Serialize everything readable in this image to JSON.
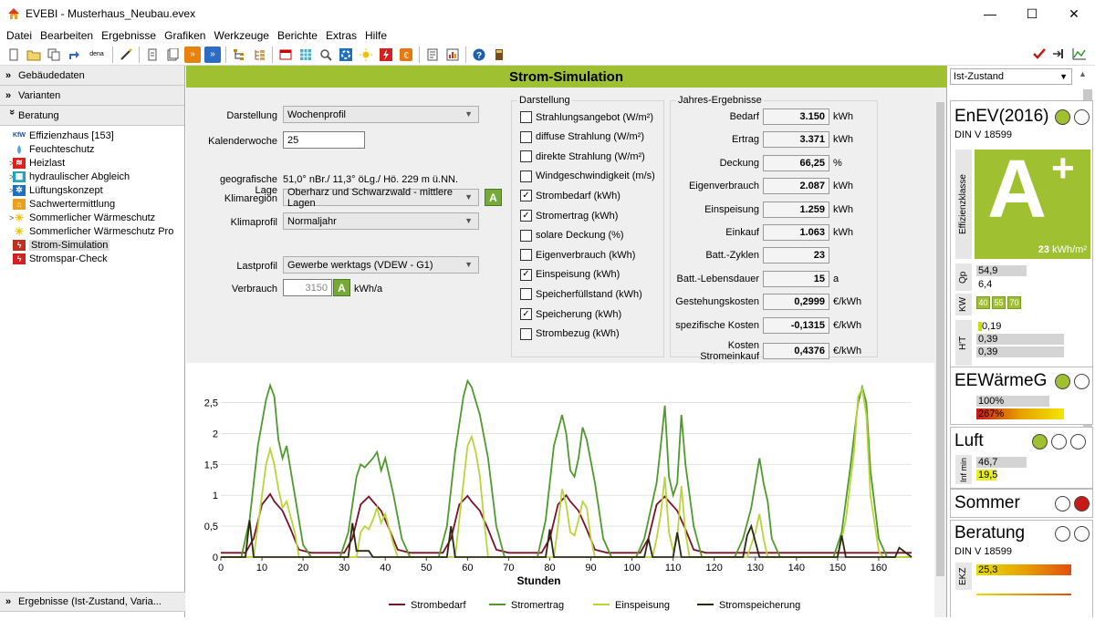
{
  "window": {
    "title": "EVEBI - Musterhaus_Neubau.evex",
    "minimize": "—",
    "maximize": "☐",
    "close": "✕"
  },
  "menu": [
    "Datei",
    "Bearbeiten",
    "Ergebnisse",
    "Grafiken",
    "Werkzeuge",
    "Berichte",
    "Extras",
    "Hilfe"
  ],
  "left": {
    "sections": {
      "gebaeudedaten": "Gebäudedaten",
      "varianten": "Varianten",
      "beratung": "Beratung",
      "ergebnisse": "Ergebnisse (Ist-Zustand, Varia..."
    },
    "tree": [
      {
        "label": "Effizienzhaus [153]",
        "icon": "kfw-icon",
        "arrow": ""
      },
      {
        "label": "Feuchteschutz",
        "icon": "drop-icon",
        "arrow": ""
      },
      {
        "label": "Heizlast",
        "icon": "heizlast-icon",
        "arrow": ">"
      },
      {
        "label": "hydraulischer Abgleich",
        "icon": "hydraulik-icon",
        "arrow": ">"
      },
      {
        "label": "Lüftungskonzept",
        "icon": "fan-icon",
        "arrow": ">"
      },
      {
        "label": "Sachwertermittlung",
        "icon": "house-icon",
        "arrow": ""
      },
      {
        "label": "Sommerlicher Wärmeschutz",
        "icon": "sun-icon",
        "arrow": ">"
      },
      {
        "label": "Sommerlicher Wärmeschutz Pro",
        "icon": "sun-icon",
        "arrow": ""
      },
      {
        "label": "Strom-Simulation",
        "icon": "strom-icon",
        "arrow": ""
      },
      {
        "label": "Stromspar-Check",
        "icon": "bolt-icon",
        "arrow": ""
      }
    ]
  },
  "main": {
    "header": "Strom-Simulation",
    "darstellung_label": "Darstellung",
    "darstellung_value": "Wochenprofil",
    "kw_label": "Kalenderwoche",
    "kw_value": "25",
    "geo_label": "geografische Lage",
    "geo_value": "51,0° nBr./ 11,3° öLg./ Hö. 229 m ü.NN.",
    "klimaregion_label": "Klimaregion",
    "klimaregion_value": "Oberharz und Schwarzwald - mittlere Lagen",
    "klimaprofil_label": "Klimaprofil",
    "klimaprofil_value": "Normaljahr",
    "lastprofil_label": "Lastprofil",
    "lastprofil_value": "Gewerbe werktags (VDEW - G1)",
    "verbrauch_label": "Verbrauch",
    "verbrauch_value": "3150",
    "verbrauch_unit": "kWh/a",
    "a_button": "A",
    "darstellung_group": "Darstellung",
    "checkboxes": [
      {
        "label": "Strahlungsangebot (W/m²)",
        "checked": false
      },
      {
        "label": "diffuse Strahlung (W/m²)",
        "checked": false
      },
      {
        "label": "direkte Strahlung (W/m²)",
        "checked": false
      },
      {
        "label": "Windgeschwindigkeit (m/s)",
        "checked": false
      },
      {
        "label": "Strombedarf (kWh)",
        "checked": true
      },
      {
        "label": "Stromertrag (kWh)",
        "checked": true
      },
      {
        "label": "solare Deckung (%)",
        "checked": false
      },
      {
        "label": "Eigenverbrauch (kWh)",
        "checked": false
      },
      {
        "label": "Einspeisung (kWh)",
        "checked": true
      },
      {
        "label": "Speicherfüllstand (kWh)",
        "checked": false
      },
      {
        "label": "Speicherung (kWh)",
        "checked": true
      },
      {
        "label": "Strombezug (kWh)",
        "checked": false
      }
    ],
    "results_group": "Jahres-Ergebnisse",
    "results": [
      {
        "label": "Bedarf",
        "value": "3.150",
        "unit": "kWh"
      },
      {
        "label": "Ertrag",
        "value": "3.371",
        "unit": "kWh"
      },
      {
        "label": "Deckung",
        "value": "66,25",
        "unit": "%"
      },
      {
        "label": "Eigenverbrauch",
        "value": "2.087",
        "unit": "kWh"
      },
      {
        "label": "Einspeisung",
        "value": "1.259",
        "unit": "kWh"
      },
      {
        "label": "Einkauf",
        "value": "1.063",
        "unit": "kWh"
      },
      {
        "label": "Batt.-Zyklen",
        "value": "23",
        "unit": ""
      },
      {
        "label": "Batt.-Lebensdauer",
        "value": "15",
        "unit": "a"
      },
      {
        "label": "Gestehungskosten",
        "value": "0,2999",
        "unit": "€/kWh"
      },
      {
        "label": "spezifische Kosten",
        "value": "-0,1315",
        "unit": "€/kWh"
      },
      {
        "label": "Kosten Stromeinkauf",
        "value": "0,4376",
        "unit": "€/kWh"
      }
    ]
  },
  "chart_data": {
    "type": "line",
    "xlabel": "Stunden",
    "ylabel": "",
    "xlim": [
      0,
      168
    ],
    "ylim": [
      0,
      2.7
    ],
    "xticks": [
      0,
      10,
      20,
      30,
      40,
      50,
      60,
      70,
      80,
      90,
      100,
      110,
      120,
      130,
      140,
      150,
      160
    ],
    "yticks": [
      {
        "v": 0,
        "t": "0"
      },
      {
        "v": 0.5,
        "t": "0,5"
      },
      {
        "v": 1,
        "t": "1"
      },
      {
        "v": 1.5,
        "t": "1,5"
      },
      {
        "v": 2,
        "t": "2"
      },
      {
        "v": 2.5,
        "t": "2,5"
      }
    ],
    "grid": true,
    "legend": "bottom",
    "series": [
      {
        "name": "Strombedarf",
        "color": "#7a1228",
        "points": [
          [
            0,
            0.07
          ],
          [
            6,
            0.07
          ],
          [
            8,
            0.3
          ],
          [
            10,
            0.85
          ],
          [
            12,
            1.02
          ],
          [
            13,
            0.9
          ],
          [
            15,
            0.75
          ],
          [
            17,
            0.45
          ],
          [
            19,
            0.12
          ],
          [
            22,
            0.07
          ],
          [
            30,
            0.07
          ],
          [
            32,
            0.3
          ],
          [
            34,
            0.85
          ],
          [
            36,
            0.98
          ],
          [
            37,
            0.9
          ],
          [
            39,
            0.75
          ],
          [
            41,
            0.45
          ],
          [
            43,
            0.12
          ],
          [
            46,
            0.07
          ],
          [
            54,
            0.07
          ],
          [
            56,
            0.3
          ],
          [
            58,
            0.85
          ],
          [
            60,
            0.99
          ],
          [
            61,
            0.9
          ],
          [
            63,
            0.75
          ],
          [
            65,
            0.45
          ],
          [
            67,
            0.12
          ],
          [
            70,
            0.07
          ],
          [
            78,
            0.07
          ],
          [
            80,
            0.3
          ],
          [
            82,
            0.85
          ],
          [
            84,
            1.0
          ],
          [
            85,
            0.9
          ],
          [
            87,
            0.75
          ],
          [
            89,
            0.45
          ],
          [
            91,
            0.12
          ],
          [
            94,
            0.07
          ],
          [
            102,
            0.07
          ],
          [
            104,
            0.3
          ],
          [
            106,
            0.85
          ],
          [
            108,
            0.98
          ],
          [
            109,
            0.9
          ],
          [
            111,
            0.75
          ],
          [
            113,
            0.45
          ],
          [
            115,
            0.12
          ],
          [
            118,
            0.07
          ],
          [
            130,
            0.07
          ],
          [
            134,
            0.07
          ],
          [
            152,
            0.07
          ],
          [
            160,
            0.07
          ],
          [
            168,
            0.07
          ]
        ]
      },
      {
        "name": "Stromertrag",
        "color": "#4f9a2c",
        "points": [
          [
            0,
            0
          ],
          [
            5,
            0
          ],
          [
            7,
            0.6
          ],
          [
            9,
            1.8
          ],
          [
            11,
            2.55
          ],
          [
            12,
            2.78
          ],
          [
            13,
            2.6
          ],
          [
            14,
            1.9
          ],
          [
            15,
            1.6
          ],
          [
            16,
            1.8
          ],
          [
            18,
            1.0
          ],
          [
            20,
            0.2
          ],
          [
            22,
            0
          ],
          [
            29,
            0
          ],
          [
            31,
            0.4
          ],
          [
            33,
            1.3
          ],
          [
            34,
            1.5
          ],
          [
            35,
            1.45
          ],
          [
            37,
            1.6
          ],
          [
            38,
            1.7
          ],
          [
            39,
            1.4
          ],
          [
            40,
            1.6
          ],
          [
            42,
            1.0
          ],
          [
            44,
            0.3
          ],
          [
            46,
            0
          ],
          [
            53,
            0
          ],
          [
            55,
            0.5
          ],
          [
            57,
            1.7
          ],
          [
            59,
            2.6
          ],
          [
            60,
            2.85
          ],
          [
            61,
            2.75
          ],
          [
            63,
            2.3
          ],
          [
            65,
            1.6
          ],
          [
            67,
            0.5
          ],
          [
            69,
            0
          ],
          [
            77,
            0
          ],
          [
            79,
            0.6
          ],
          [
            81,
            1.8
          ],
          [
            83,
            2.3
          ],
          [
            84,
            2.0
          ],
          [
            85,
            1.4
          ],
          [
            86,
            1.3
          ],
          [
            87,
            1.6
          ],
          [
            88,
            2.1
          ],
          [
            89,
            1.9
          ],
          [
            91,
            1.2
          ],
          [
            93,
            0.3
          ],
          [
            95,
            0
          ],
          [
            101,
            0
          ],
          [
            103,
            0.3
          ],
          [
            105,
            0.9
          ],
          [
            106,
            1.2
          ],
          [
            107,
            1.8
          ],
          [
            108,
            2.45
          ],
          [
            109,
            1.3
          ],
          [
            110,
            1.0
          ],
          [
            111,
            1.2
          ],
          [
            112,
            2.3
          ],
          [
            113,
            1.5
          ],
          [
            115,
            0.5
          ],
          [
            117,
            0
          ],
          [
            125,
            0
          ],
          [
            127,
            0.3
          ],
          [
            129,
            0.8
          ],
          [
            131,
            1.6
          ],
          [
            132,
            1.2
          ],
          [
            133,
            0.9
          ],
          [
            134,
            0.3
          ],
          [
            136,
            0
          ],
          [
            149,
            0
          ],
          [
            151,
            0.4
          ],
          [
            153,
            1.4
          ],
          [
            155,
            2.5
          ],
          [
            156,
            2.75
          ],
          [
            157,
            2.5
          ],
          [
            158,
            1.4
          ],
          [
            160,
            0.3
          ],
          [
            162,
            0
          ],
          [
            168,
            0
          ]
        ]
      },
      {
        "name": "Einspeisung",
        "color": "#b9d53a",
        "points": [
          [
            0,
            0
          ],
          [
            8,
            0
          ],
          [
            9,
            0.5
          ],
          [
            11,
            1.5
          ],
          [
            12,
            1.75
          ],
          [
            13,
            1.5
          ],
          [
            14,
            1.1
          ],
          [
            15,
            0.8
          ],
          [
            16,
            0.9
          ],
          [
            18,
            0.4
          ],
          [
            19,
            0
          ],
          [
            33,
            0
          ],
          [
            34,
            0.4
          ],
          [
            35,
            0.5
          ],
          [
            36,
            0.45
          ],
          [
            37,
            0.6
          ],
          [
            38,
            0.8
          ],
          [
            39,
            0.55
          ],
          [
            40,
            0.7
          ],
          [
            42,
            0.2
          ],
          [
            43,
            0
          ],
          [
            57,
            0
          ],
          [
            58,
            0.6
          ],
          [
            60,
            1.8
          ],
          [
            61,
            1.95
          ],
          [
            62,
            1.7
          ],
          [
            63,
            1.3
          ],
          [
            64,
            0.6
          ],
          [
            65,
            0
          ],
          [
            81,
            0
          ],
          [
            82,
            0.5
          ],
          [
            83,
            1.1
          ],
          [
            84,
            0.85
          ],
          [
            85,
            0.4
          ],
          [
            86,
            0.35
          ],
          [
            87,
            0.6
          ],
          [
            88,
            0.9
          ],
          [
            89,
            0.8
          ],
          [
            90,
            0.3
          ],
          [
            91,
            0
          ],
          [
            105,
            0
          ],
          [
            106,
            0.3
          ],
          [
            107,
            0.7
          ],
          [
            108,
            1.3
          ],
          [
            109,
            0.4
          ],
          [
            110,
            0.1
          ],
          [
            111,
            0.3
          ],
          [
            112,
            1.15
          ],
          [
            113,
            0.4
          ],
          [
            114,
            0
          ],
          [
            128,
            0
          ],
          [
            130,
            0.4
          ],
          [
            131,
            0.7
          ],
          [
            132,
            0.3
          ],
          [
            133,
            0
          ],
          [
            150,
            0
          ],
          [
            152,
            0.6
          ],
          [
            154,
            1.7
          ],
          [
            155,
            2.6
          ],
          [
            156,
            2.72
          ],
          [
            157,
            2.3
          ],
          [
            158,
            1.0
          ],
          [
            160,
            0.1
          ],
          [
            161,
            0
          ],
          [
            168,
            0
          ]
        ]
      },
      {
        "name": "Stromspeicherung",
        "color": "#2a2a12",
        "points": [
          [
            0,
            0
          ],
          [
            6,
            0
          ],
          [
            7,
            0.6
          ],
          [
            8,
            0
          ],
          [
            31,
            0
          ],
          [
            32,
            0.55
          ],
          [
            33,
            0.1
          ],
          [
            36,
            0.1
          ],
          [
            37,
            0
          ],
          [
            55,
            0
          ],
          [
            56,
            0.5
          ],
          [
            57,
            0
          ],
          [
            79,
            0
          ],
          [
            80,
            0.45
          ],
          [
            81,
            0
          ],
          [
            103,
            0
          ],
          [
            104,
            0.3
          ],
          [
            105,
            0
          ],
          [
            110,
            0
          ],
          [
            111,
            0.4
          ],
          [
            112,
            0
          ],
          [
            127,
            0
          ],
          [
            128,
            0.35
          ],
          [
            129,
            0.5
          ],
          [
            130,
            0.25
          ],
          [
            131,
            0
          ],
          [
            150,
            0
          ],
          [
            151,
            0.35
          ],
          [
            152,
            0
          ],
          [
            164,
            0
          ],
          [
            165,
            0.15
          ],
          [
            168,
            0
          ]
        ]
      }
    ]
  },
  "right": {
    "dropdown": "Ist-Zustand",
    "enev": {
      "title": "EnEV(2016)",
      "norm": "DIN V 18599",
      "klasse_label": "Effizienzklasse",
      "klasse": "A",
      "klasse_plus": "+",
      "value": "23",
      "unit": "kWh/m²"
    },
    "qp_label": "Qp",
    "qp_value": "54,9",
    "qp_value2": "6,4",
    "kw_label": "KW",
    "kw_badges": [
      "40",
      "55",
      "70"
    ],
    "ht_label": "H'T",
    "ht_values": [
      "0,19",
      "0,39",
      "0,39"
    ],
    "eewaerme": {
      "title": "EEWärmeG",
      "v1": "100%",
      "v2": "267%"
    },
    "luft": {
      "title": "Luft",
      "label": "Inf min",
      "v1": "46,7",
      "v2": "19,5"
    },
    "sommer": {
      "title": "Sommer"
    },
    "beratung": {
      "title": "Beratung",
      "norm": "DIN V 18599",
      "ekz_label": "EKZ",
      "ekz_value": "25,3"
    },
    "colors": {
      "green": "#9fc131",
      "red": "#c81919",
      "klasse_bg": "#9fc131"
    }
  }
}
